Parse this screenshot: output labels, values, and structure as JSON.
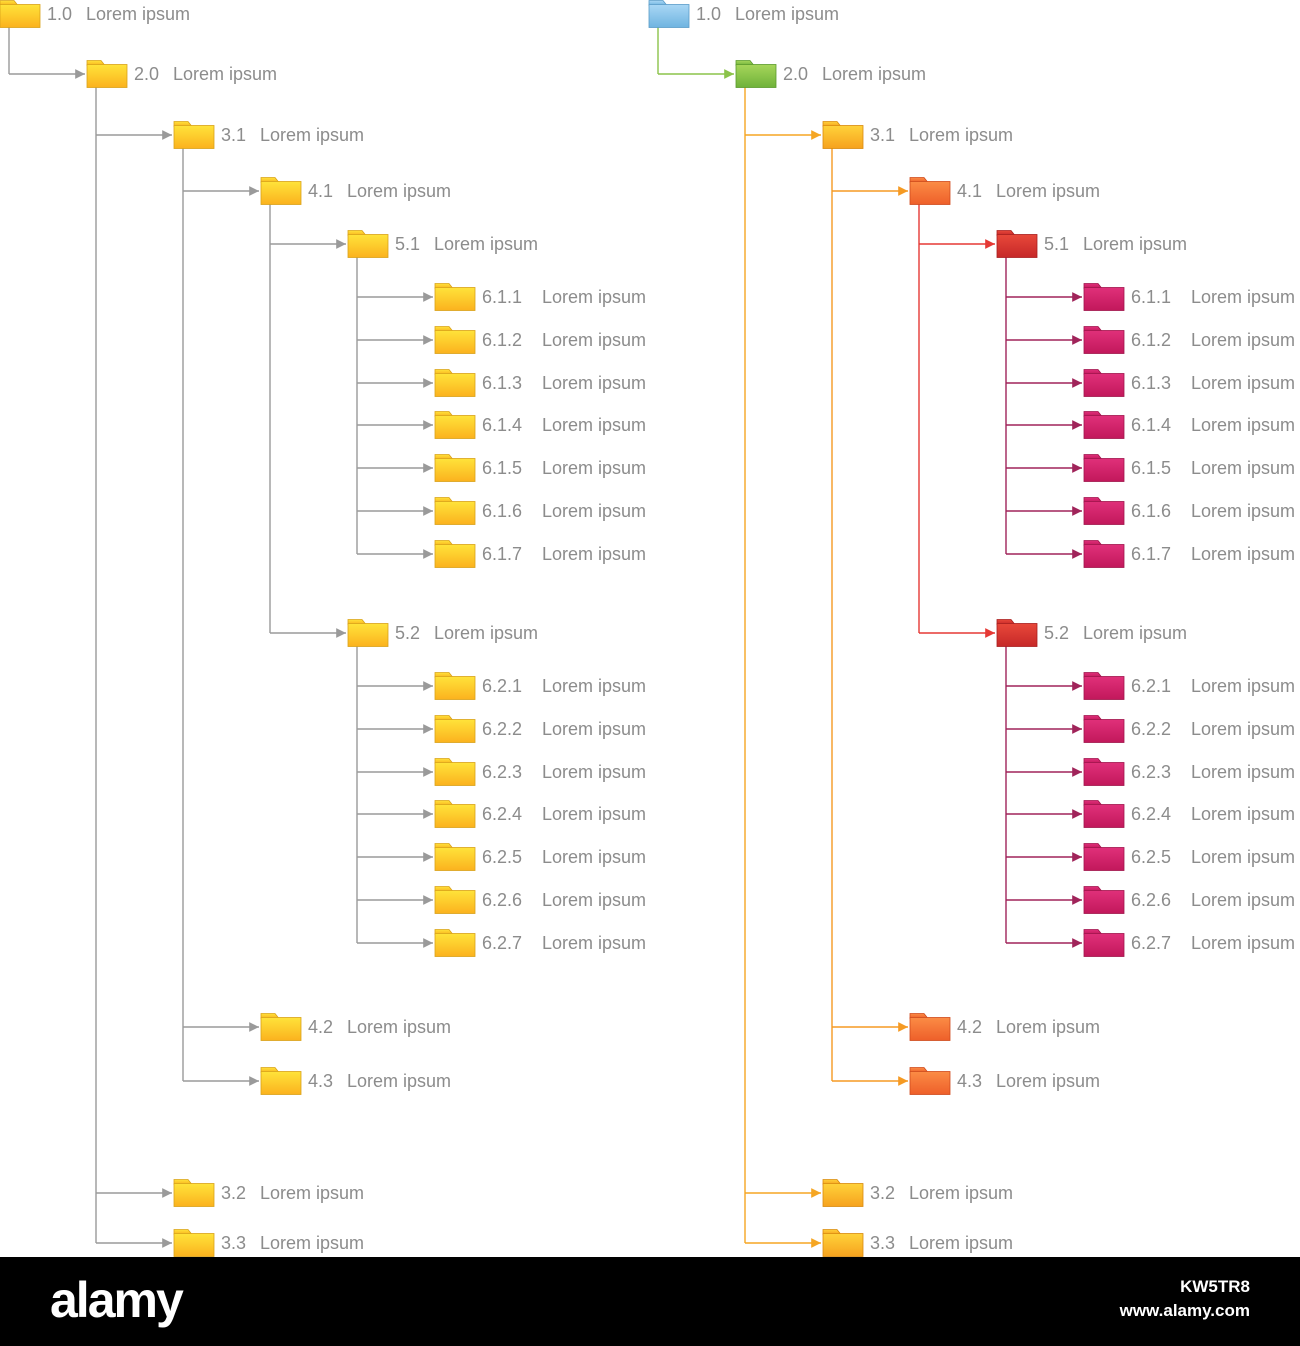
{
  "trees": [
    {
      "name": "tree-left",
      "color_scheme": {
        "line": "#9a9a9a",
        "arrow": "#9a9a9a",
        "folder_top": "#ffe33a",
        "folder_bottom": "#fbb21e",
        "folder_edge": "#d9a21a"
      },
      "root": {
        "num": "1.0",
        "label": "Lorem ipsum",
        "children": [
          {
            "num": "2.0",
            "label": "Lorem ipsum",
            "children": [
              {
                "num": "3.1",
                "label": "Lorem ipsum",
                "children": [
                  {
                    "num": "4.1",
                    "label": "Lorem ipsum",
                    "children": [
                      {
                        "num": "5.1",
                        "label": "Lorem ipsum",
                        "children": [
                          {
                            "num": "6.1.1",
                            "label": "Lorem ipsum"
                          },
                          {
                            "num": "6.1.2",
                            "label": "Lorem ipsum"
                          },
                          {
                            "num": "6.1.3",
                            "label": "Lorem ipsum"
                          },
                          {
                            "num": "6.1.4",
                            "label": "Lorem ipsum"
                          },
                          {
                            "num": "6.1.5",
                            "label": "Lorem ipsum"
                          },
                          {
                            "num": "6.1.6",
                            "label": "Lorem ipsum"
                          },
                          {
                            "num": "6.1.7",
                            "label": "Lorem ipsum"
                          }
                        ]
                      },
                      {
                        "num": "5.2",
                        "label": "Lorem ipsum",
                        "children": [
                          {
                            "num": "6.2.1",
                            "label": "Lorem ipsum"
                          },
                          {
                            "num": "6.2.2",
                            "label": "Lorem ipsum"
                          },
                          {
                            "num": "6.2.3",
                            "label": "Lorem ipsum"
                          },
                          {
                            "num": "6.2.4",
                            "label": "Lorem ipsum"
                          },
                          {
                            "num": "6.2.5",
                            "label": "Lorem ipsum"
                          },
                          {
                            "num": "6.2.6",
                            "label": "Lorem ipsum"
                          },
                          {
                            "num": "6.2.7",
                            "label": "Lorem ipsum"
                          }
                        ]
                      }
                    ]
                  },
                  {
                    "num": "4.2",
                    "label": "Lorem ipsum"
                  },
                  {
                    "num": "4.3",
                    "label": "Lorem ipsum"
                  }
                ]
              },
              {
                "num": "3.2",
                "label": "Lorem ipsum"
              },
              {
                "num": "3.3",
                "label": "Lorem ipsum"
              }
            ]
          }
        ]
      }
    },
    {
      "name": "tree-right",
      "color_scheme": {
        "levels": [
          {
            "line": "#8bc34a",
            "folder_top": "#a9d7f5",
            "folder_bottom": "#6fb4e0",
            "folder_edge": "#5a9cc8"
          },
          {
            "line": "#f5a623",
            "folder_top": "#a6d65a",
            "folder_bottom": "#6fb23a",
            "folder_edge": "#5a9a2c"
          },
          {
            "line": "#f59a23",
            "folder_top": "#ffd23a",
            "folder_bottom": "#f6a21e",
            "folder_edge": "#d98a10"
          },
          {
            "line": "#e53935",
            "folder_top": "#fb8c45",
            "folder_bottom": "#ee5f2a",
            "folder_edge": "#cf4a1c"
          },
          {
            "line": "#a0245a",
            "folder_top": "#e8483a",
            "folder_bottom": "#c62828",
            "folder_edge": "#a81f1f"
          },
          {
            "line": "#a0245a",
            "folder_top": "#e0307a",
            "folder_bottom": "#c2185b",
            "folder_edge": "#a0144c"
          }
        ]
      },
      "root": {
        "num": "1.0",
        "label": "Lorem ipsum",
        "children": [
          {
            "num": "2.0",
            "label": "Lorem ipsum",
            "children": [
              {
                "num": "3.1",
                "label": "Lorem ipsum",
                "children": [
                  {
                    "num": "4.1",
                    "label": "Lorem ipsum",
                    "children": [
                      {
                        "num": "5.1",
                        "label": "Lorem ipsum",
                        "children": [
                          {
                            "num": "6.1.1",
                            "label": "Lorem ipsum"
                          },
                          {
                            "num": "6.1.2",
                            "label": "Lorem ipsum"
                          },
                          {
                            "num": "6.1.3",
                            "label": "Lorem ipsum"
                          },
                          {
                            "num": "6.1.4",
                            "label": "Lorem ipsum"
                          },
                          {
                            "num": "6.1.5",
                            "label": "Lorem ipsum"
                          },
                          {
                            "num": "6.1.6",
                            "label": "Lorem ipsum"
                          },
                          {
                            "num": "6.1.7",
                            "label": "Lorem ipsum"
                          }
                        ]
                      },
                      {
                        "num": "5.2",
                        "label": "Lorem ipsum",
                        "children": [
                          {
                            "num": "6.2.1",
                            "label": "Lorem ipsum"
                          },
                          {
                            "num": "6.2.2",
                            "label": "Lorem ipsum"
                          },
                          {
                            "num": "6.2.3",
                            "label": "Lorem ipsum"
                          },
                          {
                            "num": "6.2.4",
                            "label": "Lorem ipsum"
                          },
                          {
                            "num": "6.2.5",
                            "label": "Lorem ipsum"
                          },
                          {
                            "num": "6.2.6",
                            "label": "Lorem ipsum"
                          },
                          {
                            "num": "6.2.7",
                            "label": "Lorem ipsum"
                          }
                        ]
                      }
                    ]
                  },
                  {
                    "num": "4.2",
                    "label": "Lorem ipsum"
                  },
                  {
                    "num": "4.3",
                    "label": "Lorem ipsum"
                  }
                ]
              },
              {
                "num": "3.2",
                "label": "Lorem ipsum"
              },
              {
                "num": "3.3",
                "label": "Lorem ipsum"
              }
            ]
          }
        ]
      }
    }
  ],
  "label_color": "#8c8c8c",
  "footer": {
    "logo": "alamy",
    "image_id": "KW5TR8",
    "url": "www.alamy.com",
    "background": "#000000",
    "text_color": "#ffffff"
  }
}
